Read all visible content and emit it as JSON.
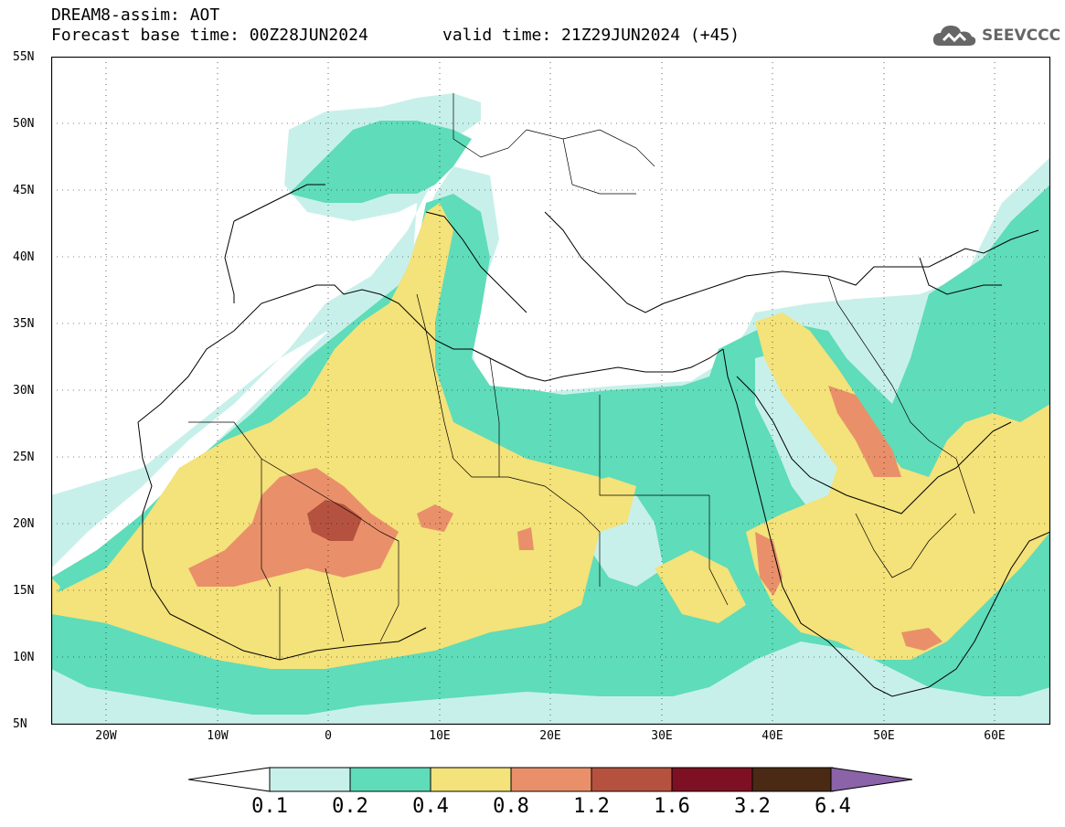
{
  "header": {
    "line1": "DREAM8-assim: AOT",
    "line2": "Forecast base time: 00Z28JUN2024",
    "valid": "valid time: 21Z29JUN2024 (+45)"
  },
  "logo": {
    "icon": "cloud-icon",
    "text": "SEEVCCC"
  },
  "axes": {
    "lat_labels": [
      "55N",
      "50N",
      "45N",
      "40N",
      "35N",
      "30N",
      "25N",
      "20N",
      "15N",
      "10N",
      "5N"
    ],
    "lon_labels": [
      "20W",
      "10W",
      "0",
      "10E",
      "20E",
      "30E",
      "40E",
      "50E",
      "60E"
    ],
    "lat_range": [
      5,
      55
    ],
    "lon_range": [
      -25,
      65
    ]
  },
  "colorbar": {
    "levels": [
      "0.1",
      "0.2",
      "0.4",
      "0.8",
      "1.2",
      "1.6",
      "3.2",
      "6.4"
    ],
    "colors": [
      "#c8f0ea",
      "#5fdcb9",
      "#f4e27a",
      "#e9906a",
      "#b5523f",
      "#7e1024",
      "#4a2a14"
    ],
    "low_color": "#ffffff",
    "high_color": "#8a63a8"
  }
}
